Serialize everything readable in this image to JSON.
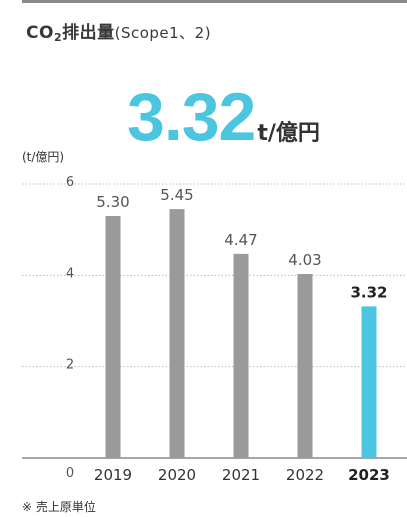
{
  "header": {
    "title_main": "CO",
    "title_sub": "2",
    "title_rest": "排出量",
    "title_scope": "(Scope1、2)",
    "headline_value": "3.32",
    "headline_unit": "t/億円",
    "unit_label": "(t/億円)",
    "footnote": "※ 売上原単位"
  },
  "colors": {
    "bar": "#9a9a9c",
    "highlight": "#4cc6e0",
    "grid": "#bdbdbd",
    "axis": "#8a8a8a"
  },
  "chart_data": {
    "type": "bar",
    "categories": [
      "2019",
      "2020",
      "2021",
      "2022",
      "2023"
    ],
    "values": [
      5.3,
      5.45,
      4.47,
      4.03,
      3.32
    ],
    "value_labels": [
      "5.30",
      "5.45",
      "4.47",
      "4.03",
      "3.32"
    ],
    "highlight_index": 4,
    "ylabel": "(t/億円)",
    "xlabel": "",
    "ylim": [
      0,
      6
    ],
    "yticks": [
      0,
      2,
      4,
      6
    ],
    "grid": true,
    "grid_style": "dotted"
  }
}
